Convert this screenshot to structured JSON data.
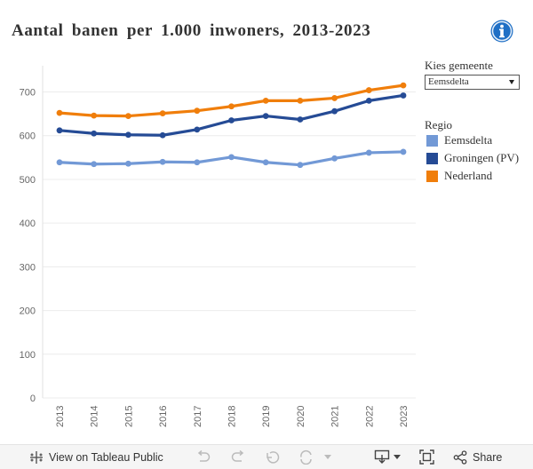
{
  "title": "Aantal banen per 1.000 inwoners, 2013-2023",
  "filter": {
    "label": "Kies gemeente",
    "selected": "Eemsdelta"
  },
  "legend": {
    "title": "Regio",
    "items": [
      {
        "label": "Eemsdelta",
        "color": "#7299d6"
      },
      {
        "label": "Groningen (PV)",
        "color": "#254b95"
      },
      {
        "label": "Nederland",
        "color": "#f07e0b"
      }
    ]
  },
  "chart_data": {
    "type": "line",
    "title": "Aantal banen per 1.000 inwoners, 2013-2023",
    "xlabel": "",
    "ylabel": "",
    "x": [
      "2013",
      "2014",
      "2015",
      "2016",
      "2017",
      "2018",
      "2019",
      "2020",
      "2021",
      "2022",
      "2023"
    ],
    "ylim": [
      0,
      760
    ],
    "yticks": [
      0,
      100,
      200,
      300,
      400,
      500,
      600,
      700
    ],
    "series": [
      {
        "name": "Eemsdelta",
        "color": "#7299d6",
        "values": [
          539,
          535,
          536,
          540,
          539,
          551,
          539,
          533,
          548,
          561,
          563
        ]
      },
      {
        "name": "Groningen (PV)",
        "color": "#254b95",
        "values": [
          612,
          605,
          602,
          601,
          614,
          635,
          645,
          637,
          656,
          680,
          692
        ]
      },
      {
        "name": "Nederland",
        "color": "#f07e0b",
        "values": [
          652,
          646,
          645,
          651,
          657,
          667,
          680,
          680,
          686,
          704,
          715
        ]
      }
    ]
  },
  "footer": {
    "view_label": "View on Tableau Public",
    "share_label": "Share"
  }
}
